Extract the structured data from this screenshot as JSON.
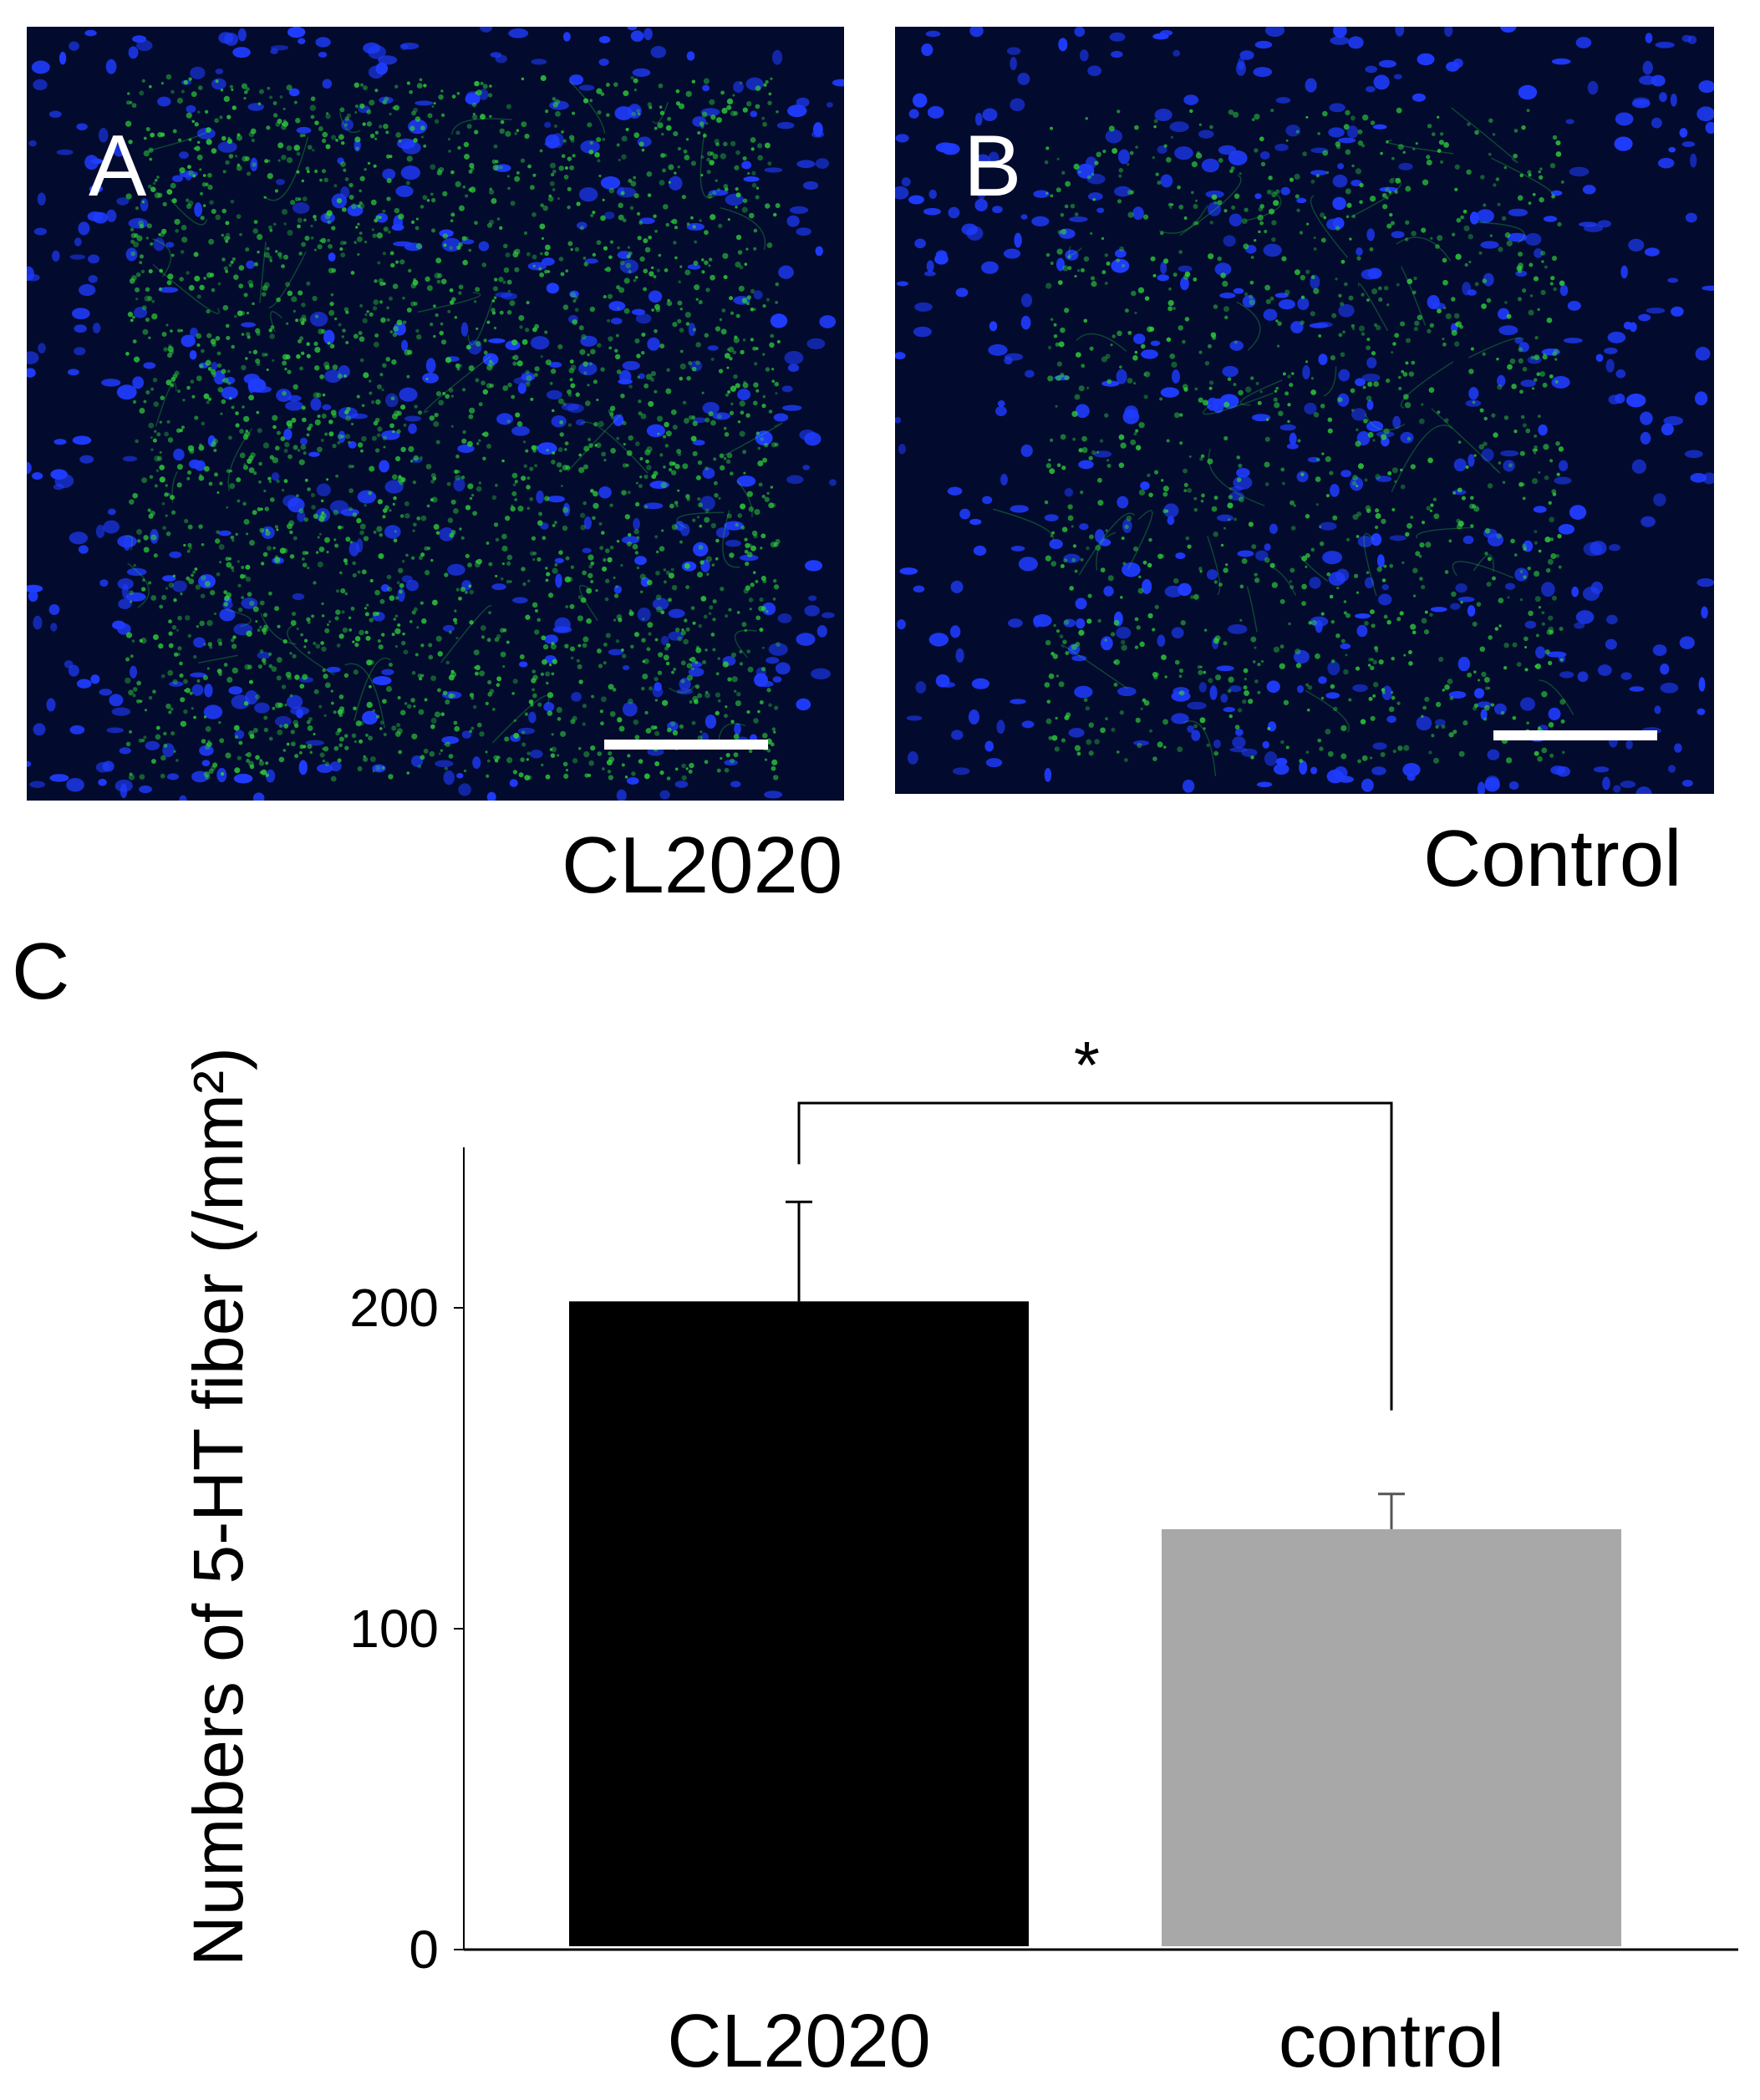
{
  "panels": {
    "a": {
      "letter": "A",
      "caption": "CL2020"
    },
    "b": {
      "letter": "B",
      "caption": "Control"
    },
    "c": {
      "letter": "C"
    }
  },
  "colors": {
    "background": "#020a2e",
    "nuclei": "#1f3cff",
    "fibers": "#2fd13a",
    "scale_bar": "#ffffff"
  },
  "chart_data": {
    "type": "bar",
    "categories": [
      "CL2020",
      "control"
    ],
    "values": [
      202,
      131
    ],
    "errors": [
      31,
      11
    ],
    "bar_colors": [
      "#000000",
      "#a8a8a8"
    ],
    "ylabel": "Numbers of 5-HT fiber (/mm²)",
    "yticks": [
      0,
      100,
      200
    ],
    "ylim": [
      0,
      250
    ],
    "significance": {
      "between": [
        0,
        1
      ],
      "label": "*"
    },
    "grid": false,
    "legend": "none"
  }
}
